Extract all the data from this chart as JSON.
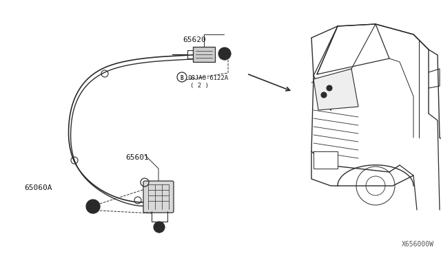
{
  "background_color": "#ffffff",
  "fig_width": 6.4,
  "fig_height": 3.72,
  "dpi": 100,
  "diagram_color": "#2a2a2a",
  "label_color": "#1a1a1a",
  "watermark": "X656000W",
  "cable_color": "#2a2a2a",
  "label_65620": [
    0.415,
    0.155
  ],
  "label_65601": [
    0.285,
    0.615
  ],
  "label_65060A": [
    0.055,
    0.735
  ],
  "bolt_label_text": "B08JA6-6122A",
  "bolt_sub_text": "( 2 )"
}
